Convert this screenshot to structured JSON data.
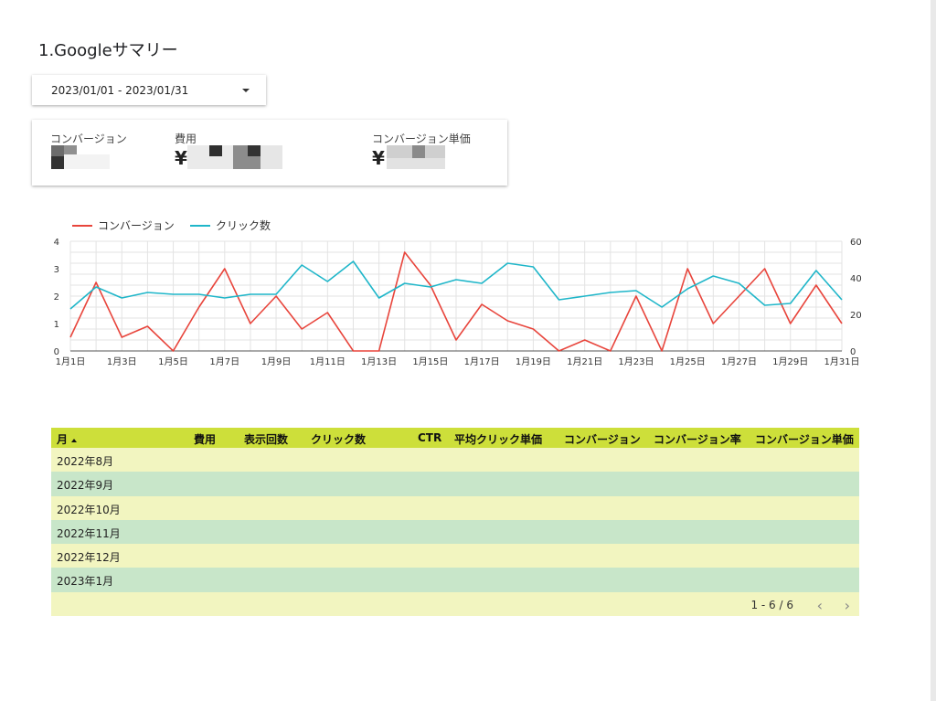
{
  "page_title": "1.Googleサマリー",
  "date_range": {
    "value": "2023/01/01 - 2023/01/31"
  },
  "scorecards": [
    {
      "label": "コンバージョン",
      "prefix": ""
    },
    {
      "label": "費用",
      "prefix": "¥"
    },
    {
      "label": "コンバージョン単価",
      "prefix": "¥"
    }
  ],
  "colors": {
    "conversion": "#e8453c",
    "clicks": "#1fb6c9",
    "header": "#cddf3a",
    "row_light": "#f2f5c0",
    "row_green": "#c8e6c9"
  },
  "chart_data": {
    "type": "line",
    "x": [
      "1月1日",
      "1月2日",
      "1月3日",
      "1月4日",
      "1月5日",
      "1月6日",
      "1月7日",
      "1月8日",
      "1月9日",
      "1月10日",
      "1月11日",
      "1月12日",
      "1月13日",
      "1月14日",
      "1月15日",
      "1月16日",
      "1月17日",
      "1月18日",
      "1月19日",
      "1月20日",
      "1月21日",
      "1月22日",
      "1月23日",
      "1月24日",
      "1月25日",
      "1月26日",
      "1月27日",
      "1月28日",
      "1月29日",
      "1月30日",
      "1月31日"
    ],
    "x_tick_labels": [
      "1月1日",
      "1月3日",
      "1月5日",
      "1月7日",
      "1月9日",
      "1月11日",
      "1月13日",
      "1月15日",
      "1月17日",
      "1月19日",
      "1月21日",
      "1月23日",
      "1月25日",
      "1月27日",
      "1月29日",
      "1月31日"
    ],
    "series": [
      {
        "name": "コンバージョン",
        "axis": "left",
        "values": [
          0.5,
          2.5,
          0.5,
          0.9,
          0,
          1.6,
          3,
          1,
          2,
          0.8,
          1.4,
          0,
          0,
          3.6,
          2.4,
          0.4,
          1.7,
          1.1,
          0.8,
          0,
          0.4,
          0,
          2,
          0,
          3,
          1,
          2,
          3,
          1,
          2.4,
          1
        ]
      },
      {
        "name": "クリック数",
        "axis": "right",
        "values": [
          23,
          35,
          29,
          32,
          31,
          31,
          29,
          31,
          31,
          47,
          38,
          49,
          29,
          37,
          35,
          39,
          37,
          48,
          46,
          28,
          30,
          32,
          33,
          24,
          34,
          41,
          37,
          25,
          26,
          44,
          28
        ]
      }
    ],
    "y_left": {
      "min": 0,
      "max": 4,
      "ticks": [
        0,
        1,
        2,
        3,
        4
      ]
    },
    "y_right": {
      "min": 0,
      "max": 60,
      "ticks": [
        0,
        20,
        40,
        60
      ]
    },
    "grid": true,
    "legend_position": "top-left"
  },
  "table": {
    "columns": [
      "月",
      "費用",
      "表示回数",
      "クリック数",
      "CTR",
      "平均クリック単価",
      "コンバージョン",
      "コンバージョン率",
      "コンバージョン単価"
    ],
    "rows": [
      {
        "month": "2022年8月"
      },
      {
        "month": "2022年9月"
      },
      {
        "month": "2022年10月"
      },
      {
        "month": "2022年11月"
      },
      {
        "month": "2022年12月"
      },
      {
        "month": "2023年1月"
      }
    ],
    "pagination": "1 - 6 / 6"
  }
}
